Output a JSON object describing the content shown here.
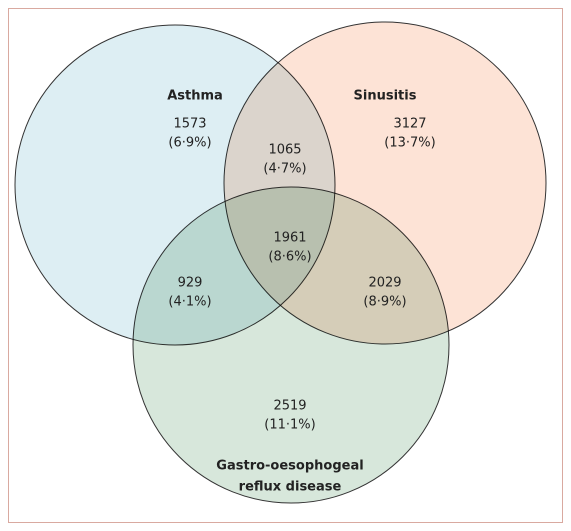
{
  "sets": [
    {
      "name": "Asthma"
    },
    {
      "name": "Sinusitis"
    },
    {
      "label_lines": [
        "Gastro-oesophogeal",
        "reflux disease"
      ]
    }
  ],
  "regions": [
    {
      "count": 1573,
      "percent": "(6·9%)"
    },
    {
      "count": 1065,
      "percent": "(4·7%)"
    },
    {
      "count": 3127,
      "percent": "(13·7%)"
    },
    {
      "count": 1961,
      "percent": "(8·6%)"
    },
    {
      "count": 929,
      "percent": "(4·1%)"
    },
    {
      "count": 2029,
      "percent": "(8·9%)"
    },
    {
      "count": 2519,
      "percent": "(11·1%)"
    }
  ]
}
